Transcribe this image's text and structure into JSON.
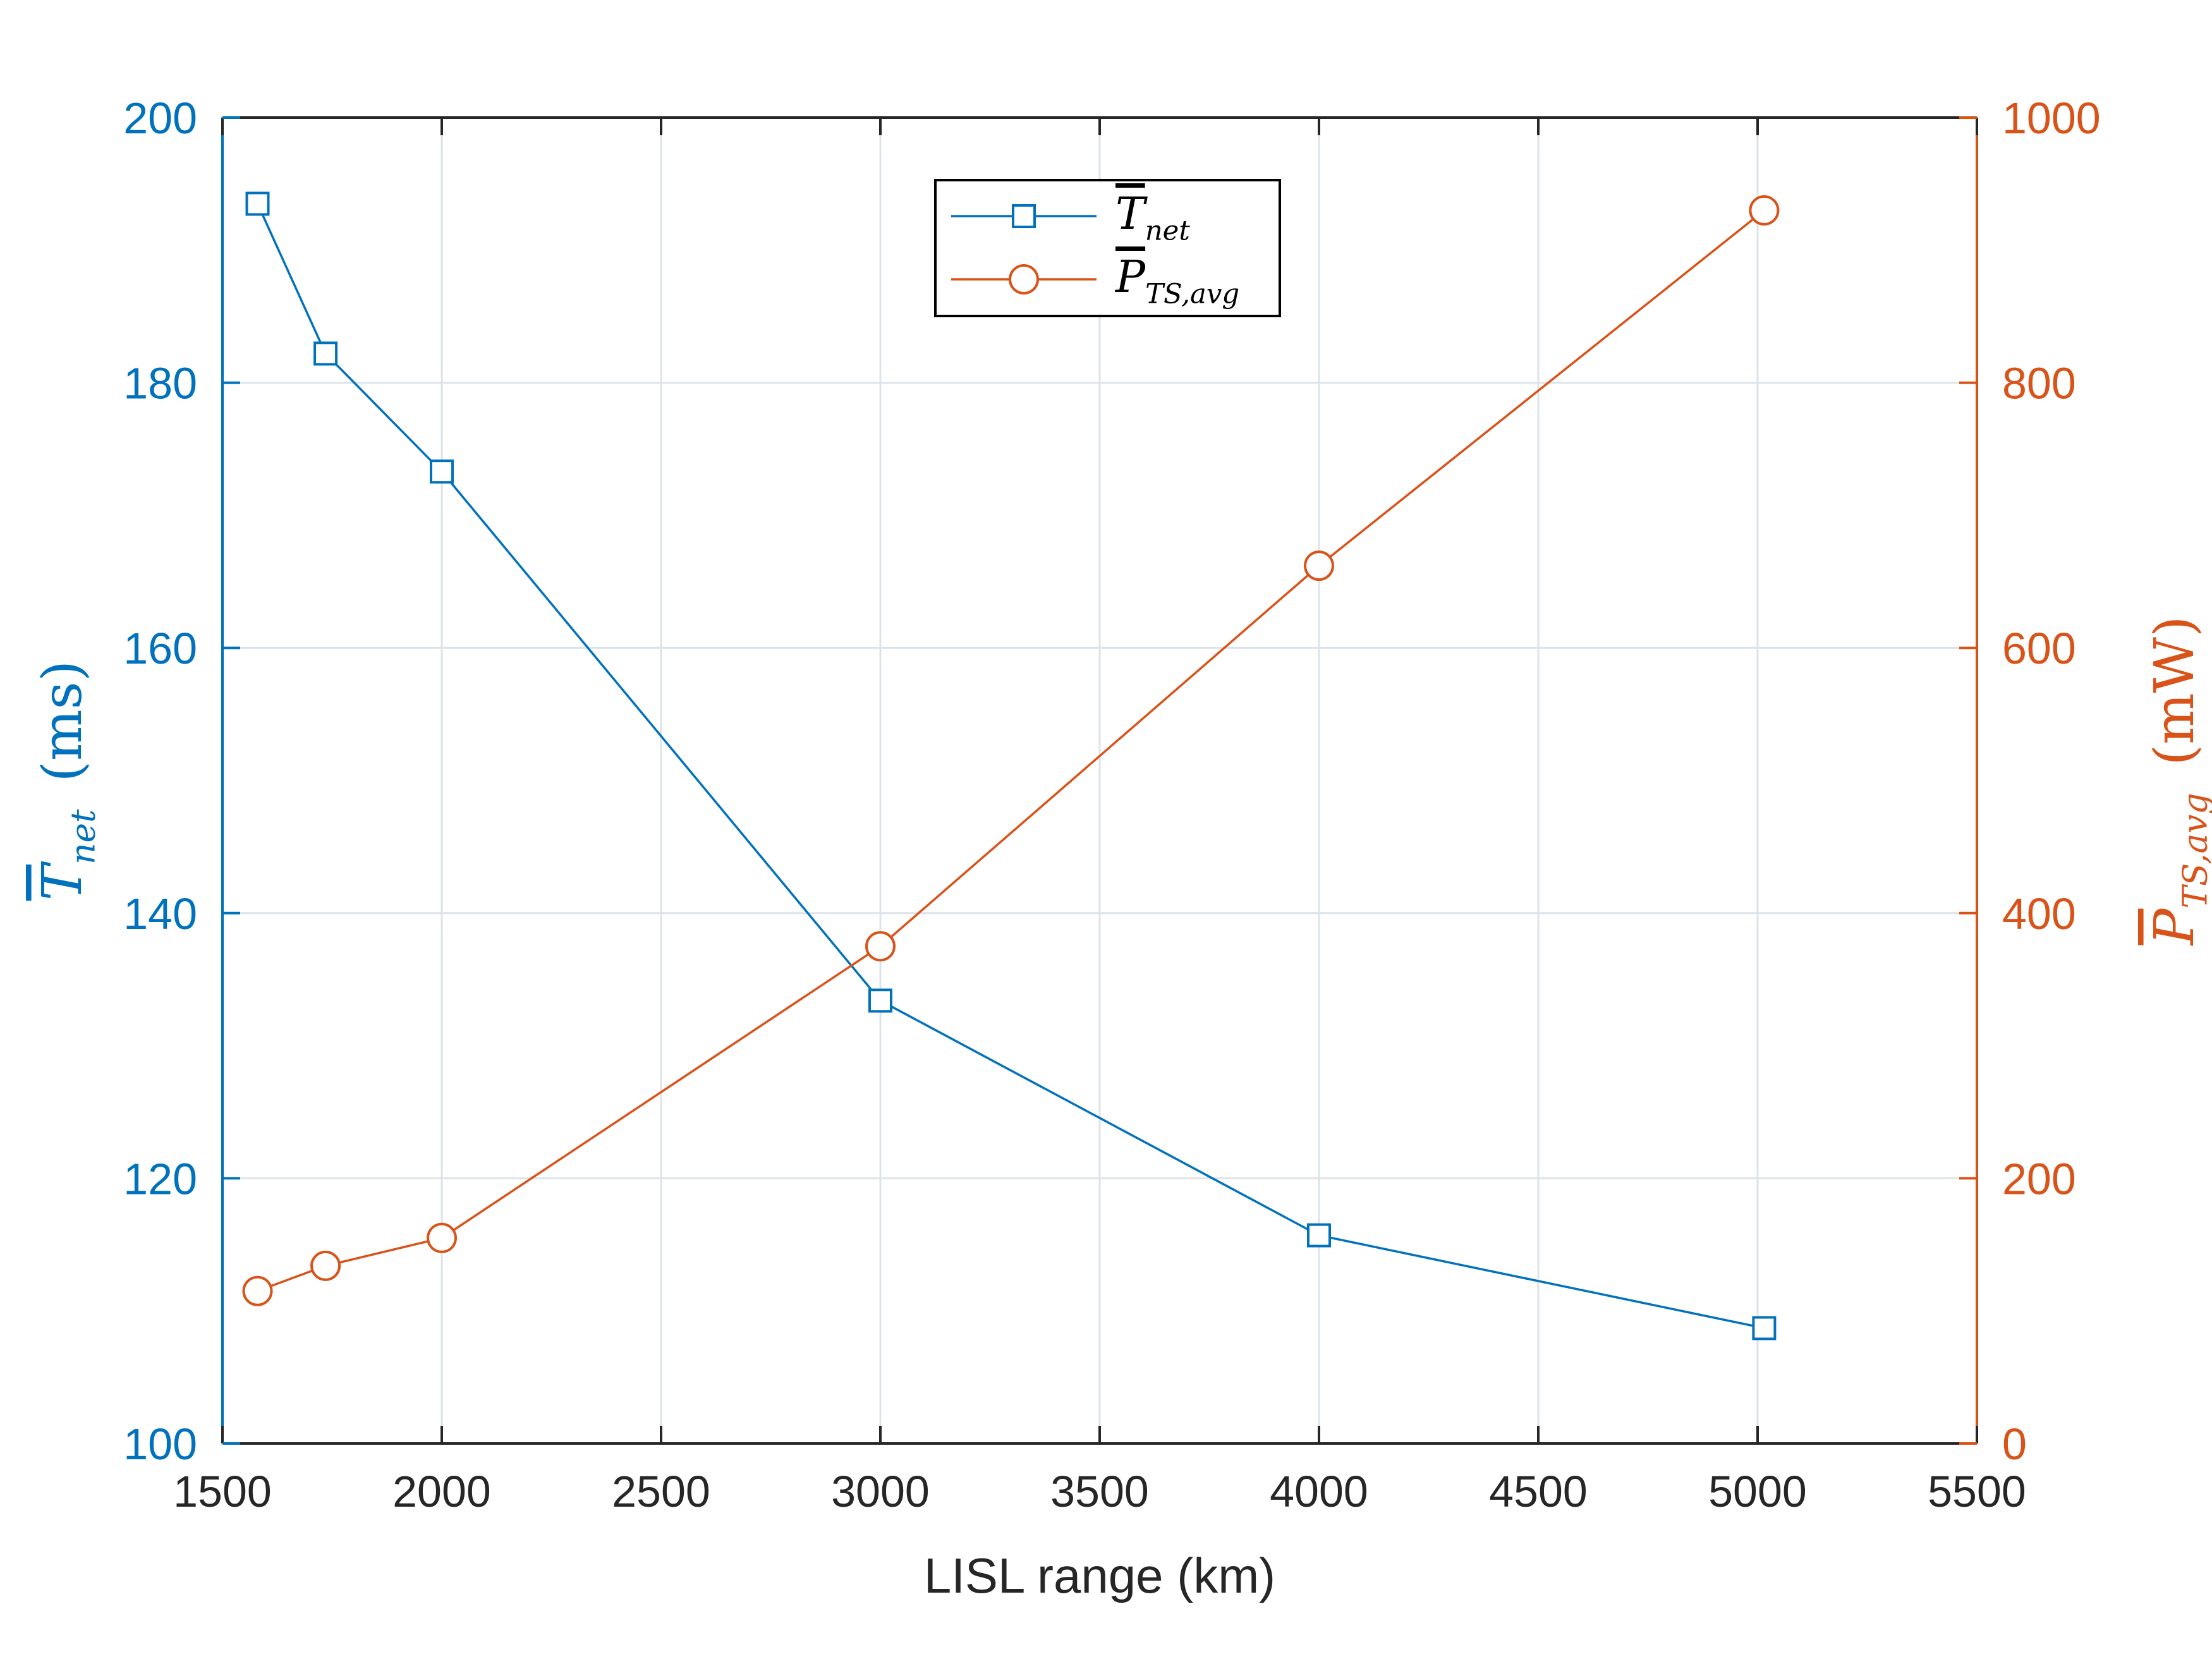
{
  "chart_data": {
    "type": "line",
    "x": [
      1580,
      1735,
      2000,
      3000,
      4000,
      5015
    ],
    "xlabel": "LISL range (km)",
    "xlim": [
      1500,
      5500
    ],
    "xticks": [
      1500,
      2000,
      2500,
      3000,
      3500,
      4000,
      4500,
      5000,
      5500
    ],
    "y_left": {
      "label_symbol": "T",
      "label_subscript": "net",
      "label_unit": "(ms)",
      "lim": [
        100,
        200
      ],
      "ticks": [
        100,
        120,
        140,
        160,
        180,
        200
      ]
    },
    "y_right": {
      "label_symbol": "P",
      "label_subscript": "TS,avg",
      "label_unit": "(mW)",
      "lim": [
        0,
        1000
      ],
      "ticks": [
        0,
        200,
        400,
        600,
        800,
        1000
      ]
    },
    "series": [
      {
        "name_symbol": "T",
        "name_subscript": "net",
        "axis": "left",
        "marker": "square",
        "color": "#0072BD",
        "values": [
          193.5,
          182.2,
          173.3,
          133.4,
          115.7,
          108.7
        ]
      },
      {
        "name_symbol": "P",
        "name_subscript": "TS,avg",
        "axis": "right",
        "marker": "circle",
        "color": "#D95319",
        "values": [
          115,
          134,
          155,
          375,
          662,
          930
        ]
      }
    ],
    "grid": true,
    "legend_position": "top-center"
  },
  "colors": {
    "left_axis": "#0072BD",
    "right_axis": "#D95319",
    "grid": "#DDE3EA",
    "axis": "#262626"
  }
}
